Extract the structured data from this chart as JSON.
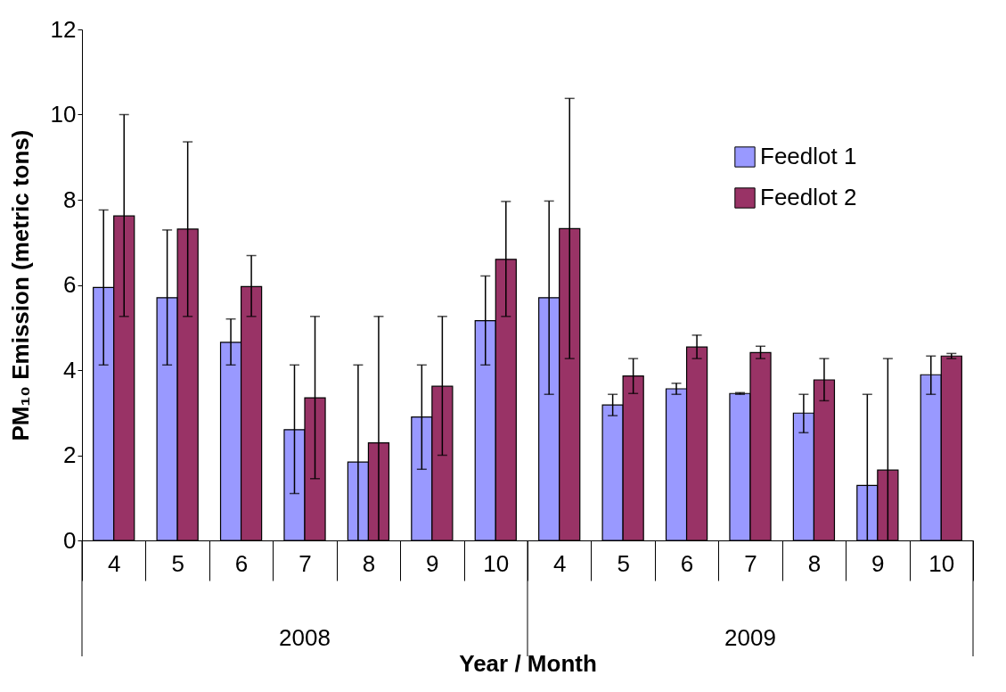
{
  "chart_data": {
    "type": "bar",
    "xlabel": "Year / Month",
    "ylabel": "PM₁₀ Emission (metric tons)",
    "categories": [
      "4",
      "5",
      "6",
      "7",
      "8",
      "9",
      "10",
      "4",
      "5",
      "6",
      "7",
      "8",
      "9",
      "10"
    ],
    "annotations": [
      "2008",
      "2009"
    ],
    "series": [
      {
        "name": "Feedlot 1",
        "color": "#9999ff",
        "values": [
          5.94,
          5.7,
          4.65,
          2.6,
          1.84,
          2.9,
          5.16,
          5.7,
          3.18,
          3.56,
          3.45,
          2.99,
          1.29,
          3.89
        ],
        "errors": [
          [
            4.12,
            7.76
          ],
          [
            4.12,
            7.29
          ],
          [
            4.12,
            5.2
          ],
          [
            1.1,
            4.12
          ],
          [
            0,
            4.12
          ],
          [
            1.67,
            4.12
          ],
          [
            4.12,
            6.21
          ],
          [
            3.43,
            7.97
          ],
          [
            2.93,
            3.43
          ],
          [
            3.43,
            3.69
          ],
          [
            3.43,
            3.47
          ],
          [
            2.53,
            3.43
          ],
          [
            0,
            3.43
          ],
          [
            3.43,
            4.33
          ]
        ]
      },
      {
        "name": "Feedlot 2",
        "color": "#993366",
        "values": [
          7.62,
          7.31,
          5.96,
          3.35,
          2.29,
          3.62,
          6.6,
          7.32,
          3.86,
          4.54,
          4.41,
          3.77,
          1.65,
          4.33
        ],
        "errors": [
          [
            5.26,
            10.0
          ],
          [
            5.26,
            9.36
          ],
          [
            5.26,
            6.69
          ],
          [
            1.45,
            5.26
          ],
          [
            0,
            5.26
          ],
          [
            2.0,
            5.26
          ],
          [
            5.26,
            7.96
          ],
          [
            4.27,
            10.38
          ],
          [
            3.45,
            4.27
          ],
          [
            4.27,
            4.82
          ],
          [
            4.27,
            4.56
          ],
          [
            3.28,
            4.27
          ],
          [
            0,
            4.27
          ],
          [
            4.27,
            4.39
          ]
        ]
      }
    ],
    "ylim": [
      0,
      12
    ],
    "yticks": [
      0,
      2,
      4,
      6,
      8,
      10,
      12
    ],
    "grid": false,
    "legend": "top right"
  }
}
